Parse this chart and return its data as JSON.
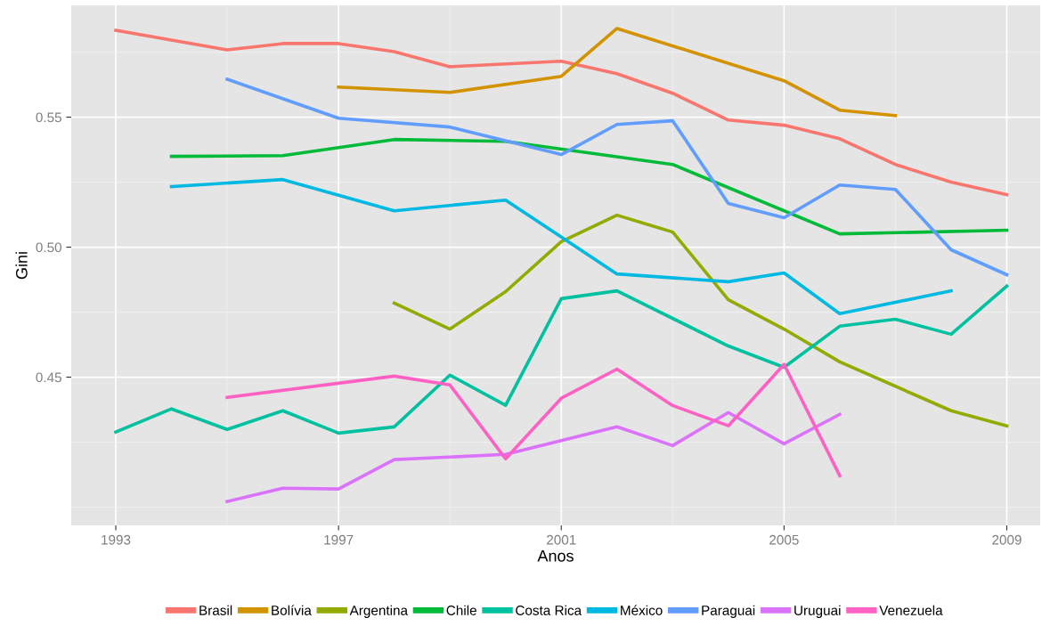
{
  "chart_data": {
    "type": "line",
    "xlabel": "Anos",
    "ylabel": "Gini",
    "xlim": [
      1992.2,
      2009.6
    ],
    "xticks": [
      1993,
      1997,
      2001,
      2005,
      2009
    ],
    "ylim": [
      0.393,
      0.593
    ],
    "yticks": [
      {
        "value": 0.45,
        "label": "0.45"
      },
      {
        "value": 0.5,
        "label": "0.50"
      },
      {
        "value": 0.55,
        "label": "0.55"
      }
    ],
    "grid": true,
    "legend": "bottom",
    "marker": "none",
    "line_style": "solid",
    "series": [
      {
        "name": "Brasil",
        "color": "#f8766d",
        "x": [
          1993,
          1995,
          1996,
          1997,
          1998,
          1999,
          2001,
          2002,
          2003,
          2004,
          2005,
          2006,
          2007,
          2008,
          2009
        ],
        "values": [
          0.5834,
          0.5759,
          0.5783,
          0.5783,
          0.5752,
          0.5694,
          0.5715,
          0.5667,
          0.5592,
          0.5489,
          0.5469,
          0.5417,
          0.5318,
          0.525,
          0.5202
        ]
      },
      {
        "name": "Bolívia",
        "color": "#d39200",
        "x": [
          1997,
          1999,
          2001,
          2002,
          2005,
          2006,
          2007
        ],
        "values": [
          0.5616,
          0.5595,
          0.5657,
          0.5841,
          0.564,
          0.5527,
          0.5506
        ]
      },
      {
        "name": "Argentina",
        "color": "#93aa00",
        "x": [
          1998,
          1999,
          2000,
          2001,
          2002,
          2003,
          2004,
          2005,
          2006,
          2008,
          2009
        ],
        "values": [
          0.4785,
          0.4685,
          0.4829,
          0.5021,
          0.5123,
          0.5058,
          0.4798,
          0.4685,
          0.4559,
          0.4371,
          0.4313
        ]
      },
      {
        "name": "Chile",
        "color": "#00ba38",
        "x": [
          1994,
          1996,
          1998,
          2000,
          2003,
          2006,
          2009
        ],
        "values": [
          0.5349,
          0.5352,
          0.5414,
          0.5407,
          0.5318,
          0.5051,
          0.5065
        ]
      },
      {
        "name": "Costa Rica",
        "color": "#00c19f",
        "x": [
          1993,
          1994,
          1995,
          1996,
          1997,
          1998,
          1999,
          2000,
          2001,
          2002,
          2004,
          2005,
          2006,
          2007,
          2008,
          2009
        ],
        "values": [
          0.4289,
          0.4378,
          0.4299,
          0.4371,
          0.4285,
          0.4309,
          0.4508,
          0.4392,
          0.4802,
          0.4832,
          0.462,
          0.4538,
          0.4696,
          0.4723,
          0.4665,
          0.485
        ]
      },
      {
        "name": "México",
        "color": "#00b9e3",
        "x": [
          1994,
          1996,
          1998,
          2000,
          2002,
          2004,
          2005,
          2006,
          2008
        ],
        "values": [
          0.5233,
          0.526,
          0.514,
          0.5181,
          0.4897,
          0.4867,
          0.4901,
          0.4744,
          0.4832
        ]
      },
      {
        "name": "Paraguai",
        "color": "#619cff",
        "x": [
          1995,
          1997,
          1999,
          2001,
          2002,
          2003,
          2004,
          2005,
          2006,
          2007,
          2008,
          2009
        ],
        "values": [
          0.5646,
          0.5496,
          0.5462,
          0.5356,
          0.5472,
          0.5486,
          0.5168,
          0.5113,
          0.5239,
          0.5222,
          0.499,
          0.4894
        ]
      },
      {
        "name": "Uruguai",
        "color": "#db72fb",
        "x": [
          1995,
          1996,
          1997,
          1998,
          2000,
          2002,
          2003,
          2004,
          2005,
          2006
        ],
        "values": [
          0.4022,
          0.4073,
          0.407,
          0.4183,
          0.4203,
          0.4309,
          0.4237,
          0.4364,
          0.4244,
          0.4357
        ]
      },
      {
        "name": "Venezuela",
        "color": "#ff61c3",
        "x": [
          1995,
          1998,
          1999,
          2000,
          2001,
          2002,
          2003,
          2004,
          2005,
          2006
        ],
        "values": [
          0.4422,
          0.4504,
          0.447,
          0.4186,
          0.4419,
          0.4531,
          0.4391,
          0.4313,
          0.4549,
          0.4121
        ]
      }
    ]
  }
}
